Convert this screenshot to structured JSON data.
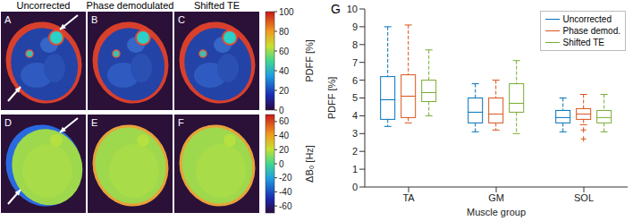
{
  "images": {
    "column_titles": [
      "Uncorrected",
      "Phase demodulated",
      "Shifted TE"
    ],
    "panel_labels": [
      [
        "A",
        "B",
        "C"
      ],
      [
        "D",
        "E",
        "F"
      ]
    ],
    "colorbars": [
      {
        "label": "PDFF [%]",
        "range": [
          0,
          100
        ],
        "ticks": [
          0,
          20,
          40,
          60,
          80,
          100
        ]
      },
      {
        "label": "ΔB₀ [Hz]",
        "range": [
          -70,
          70
        ],
        "ticks": [
          -60,
          -40,
          -20,
          0,
          20,
          40,
          60
        ]
      }
    ]
  },
  "chart_data": {
    "type": "box",
    "panel_label": "G",
    "xlabel": "Muscle group",
    "ylabel": "PDFF [%]",
    "categories": [
      "TA",
      "GM",
      "SOL"
    ],
    "ylim": [
      0,
      10
    ],
    "yticks": [
      0,
      1,
      2,
      3,
      4,
      5,
      6,
      7,
      8,
      9,
      10
    ],
    "legend": "upper right",
    "series": [
      {
        "name": "Uncorrected",
        "color": "#0072bd",
        "values": [
          {
            "whislo": 3.4,
            "q1": 3.8,
            "med": 4.9,
            "q3": 6.2,
            "whishi": 9.0,
            "fliers": []
          },
          {
            "whislo": 3.1,
            "q1": 3.6,
            "med": 4.2,
            "q3": 5.0,
            "whishi": 5.8,
            "fliers": []
          },
          {
            "whislo": 3.1,
            "q1": 3.6,
            "med": 3.9,
            "q3": 4.3,
            "whishi": 5.0,
            "fliers": []
          }
        ]
      },
      {
        "name": "Phase demod.",
        "color": "#d95319",
        "values": [
          {
            "whislo": 3.6,
            "q1": 3.9,
            "med": 5.1,
            "q3": 6.3,
            "whishi": 9.1,
            "fliers": []
          },
          {
            "whislo": 3.2,
            "q1": 3.6,
            "med": 4.1,
            "q3": 5.0,
            "whishi": 6.0,
            "fliers": []
          },
          {
            "whislo": 3.5,
            "q1": 3.8,
            "med": 4.1,
            "q3": 4.4,
            "whishi": 5.2,
            "fliers": [
              3.2,
              2.7
            ]
          }
        ]
      },
      {
        "name": "Shifted TE",
        "color": "#77ac30",
        "values": [
          {
            "whislo": 4.0,
            "q1": 4.8,
            "med": 5.3,
            "q3": 6.0,
            "whishi": 7.7,
            "fliers": []
          },
          {
            "whislo": 3.0,
            "q1": 4.2,
            "med": 4.7,
            "q3": 5.8,
            "whishi": 7.1,
            "fliers": []
          },
          {
            "whislo": 3.1,
            "q1": 3.6,
            "med": 3.9,
            "q3": 4.3,
            "whishi": 5.2,
            "fliers": []
          }
        ]
      }
    ]
  }
}
